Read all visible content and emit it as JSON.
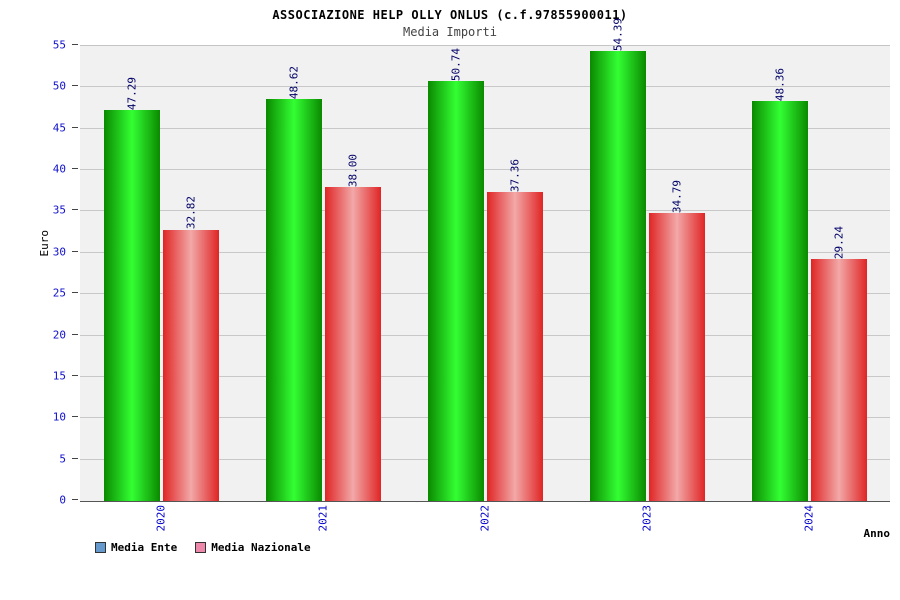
{
  "chart_data": {
    "type": "bar",
    "title": "ASSOCIAZIONE HELP OLLY ONLUS (c.f.97855900011)",
    "subtitle": "Media Importi",
    "xlabel": "Anno",
    "ylabel": "Euro",
    "ylim": [
      0,
      55
    ],
    "ytick_step": 5,
    "grid": true,
    "legend_position": "bottom-left",
    "categories": [
      "2020",
      "2021",
      "2022",
      "2023",
      "2024"
    ],
    "series": [
      {
        "name": "Media Ente",
        "values": [
          47.29,
          48.62,
          50.74,
          54.39,
          48.36
        ],
        "bar_edge_color": "#0a8a00",
        "bar_center_color": "#33ff33",
        "legend_color": "#6699cc"
      },
      {
        "name": "Media Nazionale",
        "values": [
          32.82,
          38.0,
          37.36,
          34.79,
          29.24
        ],
        "bar_edge_color": "#e02525",
        "bar_center_color": "#f2a8a8",
        "legend_color": "#ee88aa"
      }
    ],
    "tick_label_color": "#1111cc",
    "value_label_color": "#000066"
  }
}
